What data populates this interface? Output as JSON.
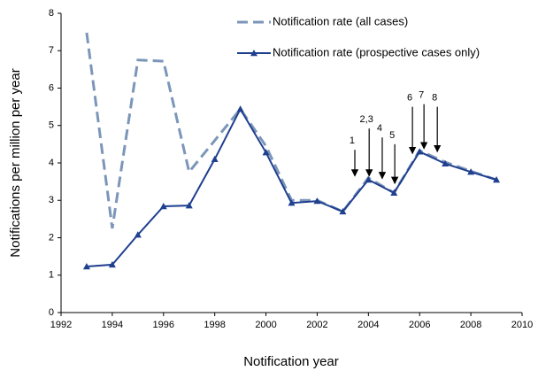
{
  "chart_data": {
    "type": "line",
    "x_label": "Notification year",
    "y_label": "Notifications per million per year",
    "x": [
      1993,
      1994,
      1995,
      1996,
      1997,
      1998,
      1999,
      2000,
      2001,
      2002,
      2003,
      2004,
      2005,
      2006,
      2007,
      2008,
      2009
    ],
    "series": [
      {
        "name": "Notification rate (all cases)",
        "color": "#7b96b9",
        "dashed": true,
        "values": [
          7.48,
          2.25,
          6.75,
          6.72,
          3.76,
          4.6,
          5.44,
          4.45,
          3.0,
          3.0,
          2.7,
          3.6,
          3.2,
          4.33,
          4.02,
          3.78,
          3.55
        ]
      },
      {
        "name": "Notification rate (prospective cases only)",
        "color": "#1f3f8f",
        "dashed": false,
        "marker": "triangle",
        "values": [
          1.23,
          1.28,
          2.08,
          2.84,
          2.86,
          4.1,
          5.44,
          4.28,
          2.93,
          2.98,
          2.7,
          3.55,
          3.2,
          4.3,
          3.98,
          3.76,
          3.55
        ]
      }
    ],
    "xlim": [
      1992,
      2010
    ],
    "xticks": [
      1992,
      1994,
      1996,
      1998,
      2000,
      2002,
      2004,
      2006,
      2008,
      2010
    ],
    "ylim": [
      0,
      8
    ],
    "yticks": [
      0,
      1,
      2,
      3,
      4,
      5,
      6,
      7,
      8
    ],
    "grid": false,
    "legend": "upper right",
    "annotations": [
      {
        "text": "1",
        "x": 2003.47,
        "y": 3.65,
        "y_from": 4.35
      },
      {
        "text": "2,3",
        "x": 2004.03,
        "y": 3.65,
        "y_from": 4.92
      },
      {
        "text": "4",
        "x": 2004.54,
        "y": 3.58,
        "y_from": 4.68
      },
      {
        "text": "5",
        "x": 2005.03,
        "y": 3.45,
        "y_from": 4.5
      },
      {
        "text": "6",
        "x": 2005.72,
        "y": 4.25,
        "y_from": 5.5
      },
      {
        "text": "7",
        "x": 2006.17,
        "y": 4.38,
        "y_from": 5.57
      },
      {
        "text": "8",
        "x": 2006.69,
        "y": 4.3,
        "y_from": 5.5
      }
    ]
  }
}
